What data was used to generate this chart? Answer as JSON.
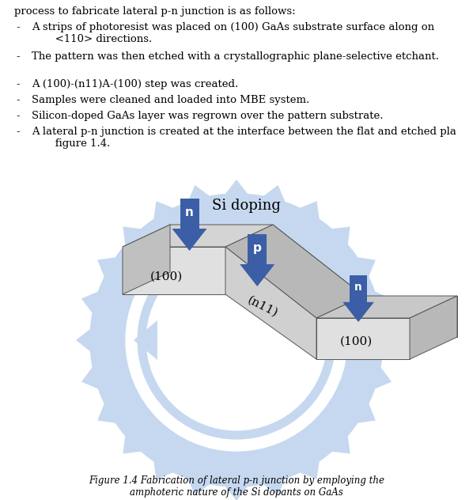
{
  "title": "Figure 1.4 Fabrication of lateral p-n junction by employing the\namphoteric nature of the Si dopants on GaAs",
  "title_fontsize": 8.5,
  "background_color": "#ffffff",
  "arrow_color": "#3b5ea6",
  "si_doping_label": "Si doping",
  "face_colors": {
    "top_upper": "#d4d4d4",
    "top_middle": "#b8b8b8",
    "top_lower": "#c8c8c8",
    "front_upper": "#e0e0e0",
    "front_lower": "#d8d8d8",
    "side_upper": "#c0c0c0",
    "side_middle": "#a8a8a8",
    "side_lower": "#b8b8b8",
    "back_face": "#c0c0c0"
  },
  "watermark_color": "#c5d8ef",
  "text_color": "#000000",
  "bullet_text": [
    "A strips of photoresist was placed on (100) GaAs substrate surface along on\n    <110> directions.",
    "The pattern was then etched with a crystallographic plane-selective etchant.",
    "A (100)-(n11)A-(100) step was created.",
    "Samples were cleaned and loaded into MBE system.",
    "Silicon-doped GaAs layer was regrown over the pattern substrate.",
    "A lateral p-n junction is created at the interface between the flat and etched pla...\n    figure 1.4."
  ],
  "bullet_fontsize": 9.5,
  "header_text": "process to fabricate lateral p-n junction is as follows:",
  "header_fontsize": 9.5
}
